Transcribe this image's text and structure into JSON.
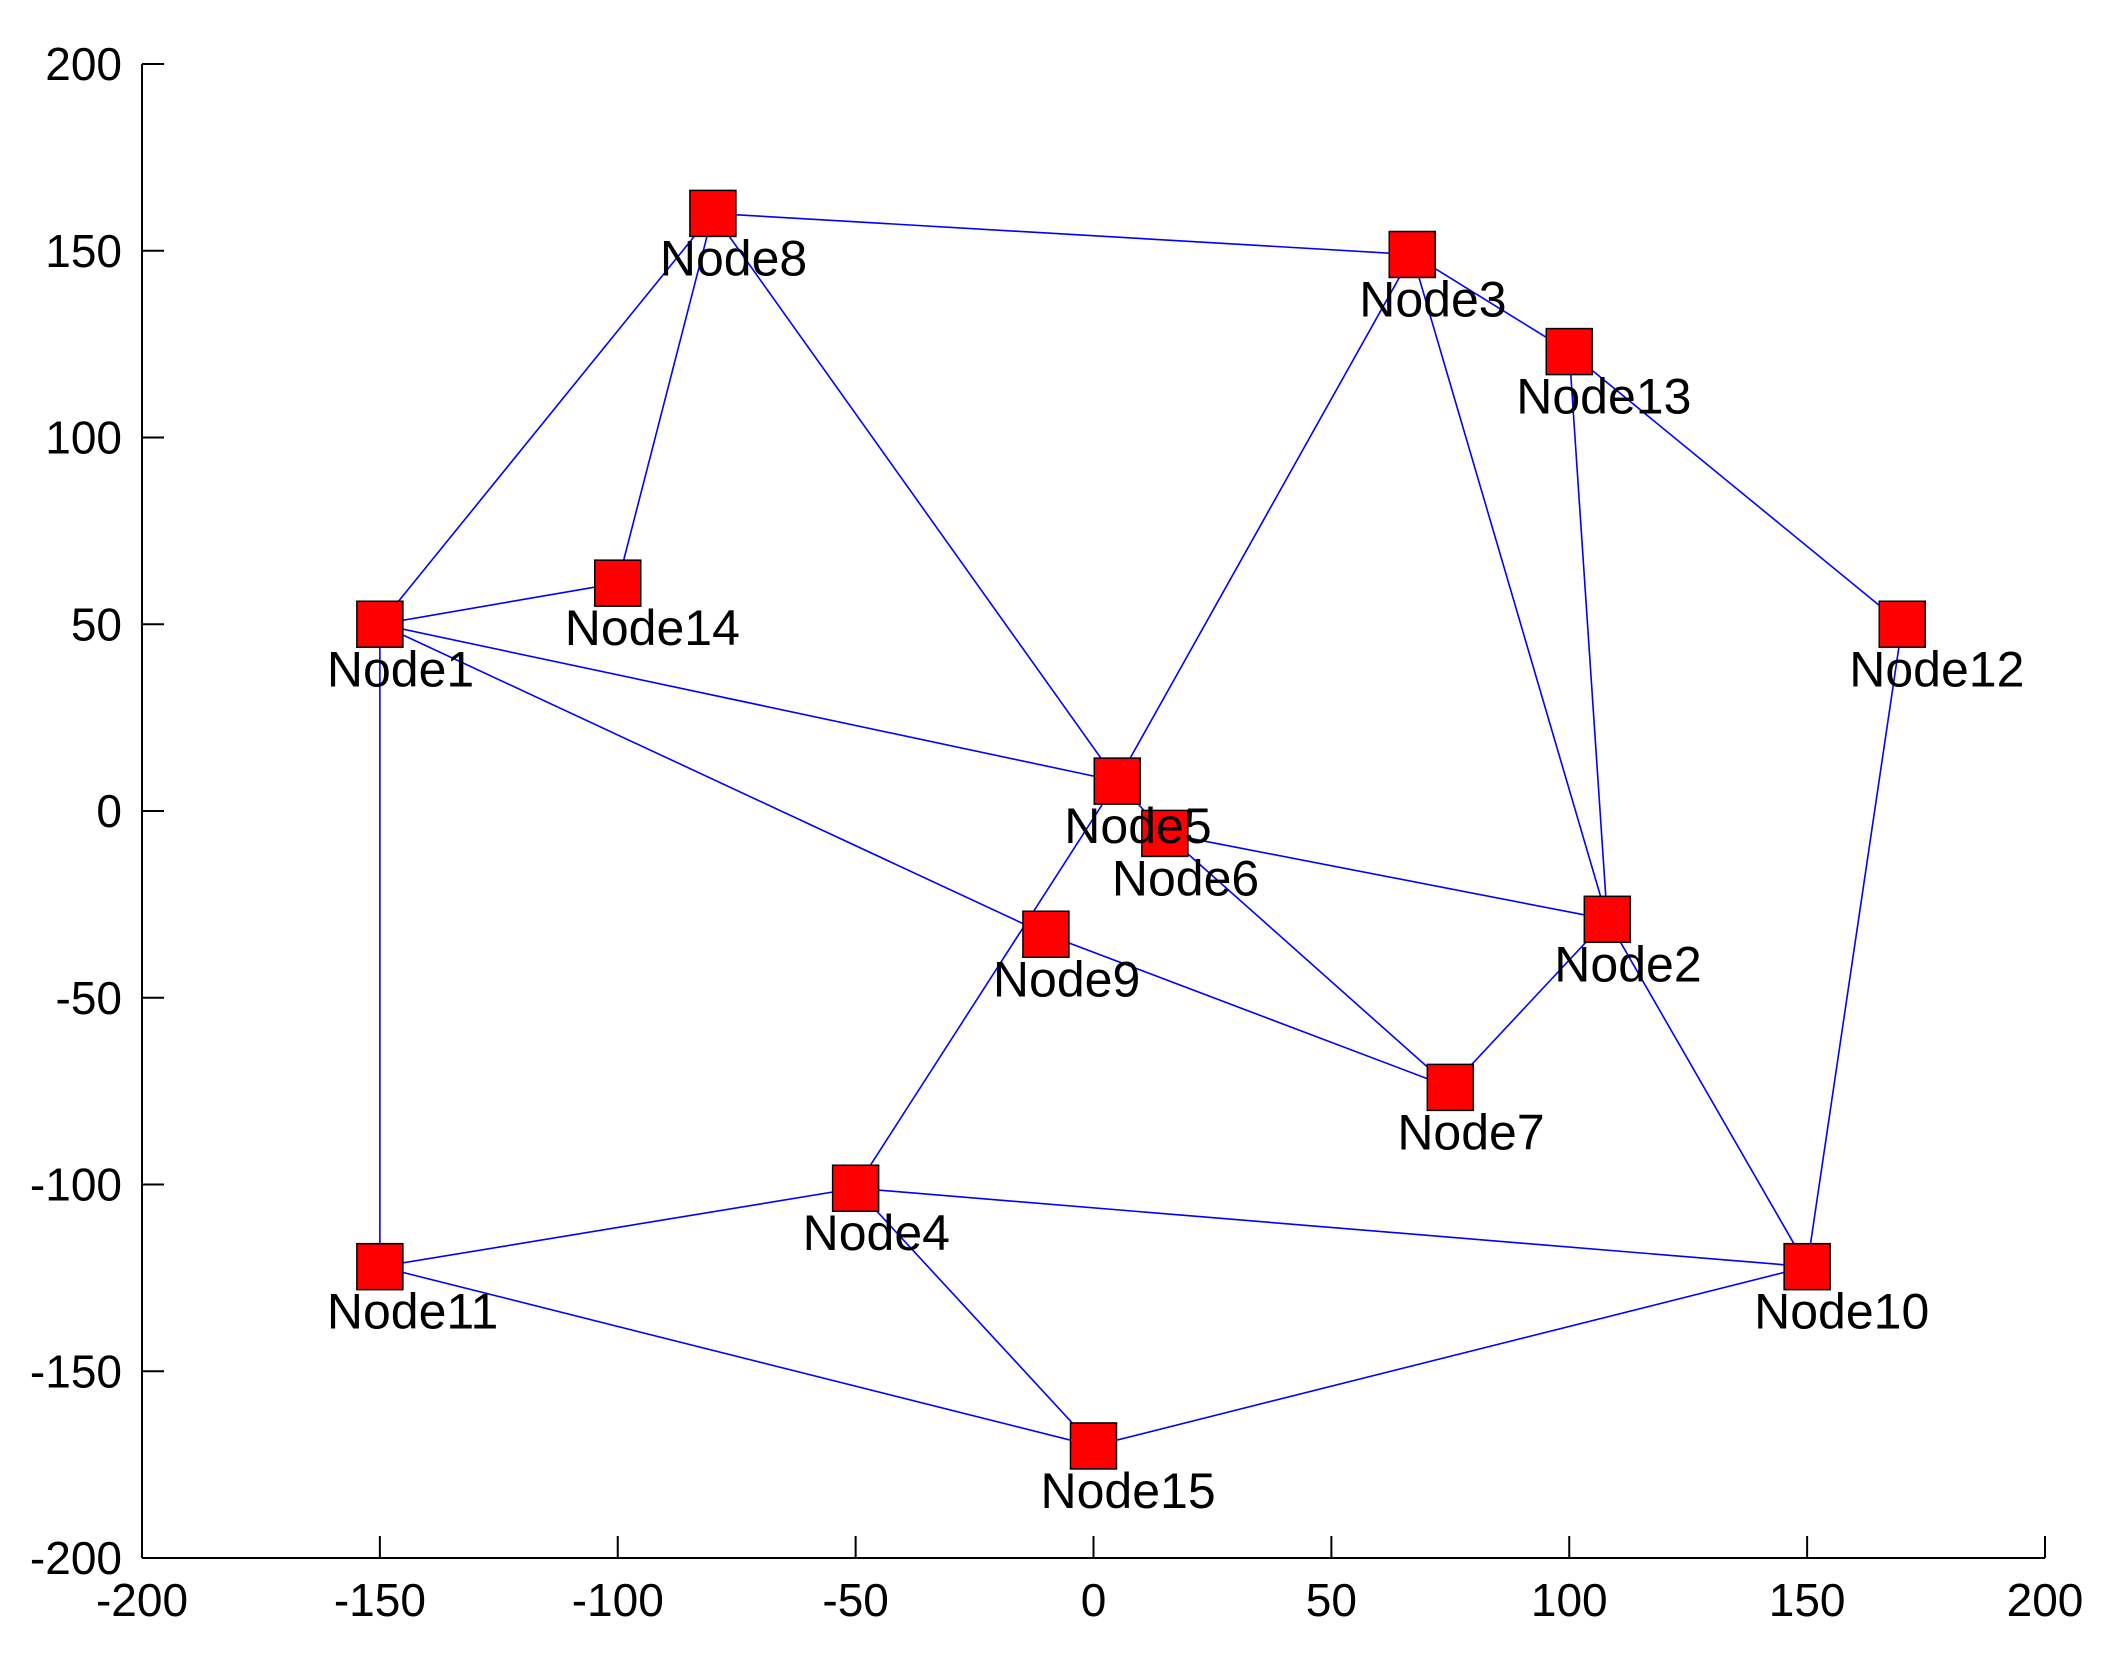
{
  "chart_data": {
    "type": "scatter",
    "title": "",
    "xlabel": "",
    "ylabel": "",
    "xlim": [
      -200,
      200
    ],
    "ylim": [
      -200,
      200
    ],
    "xticks": [
      -200,
      -150,
      -100,
      -50,
      0,
      50,
      100,
      150,
      200
    ],
    "yticks": [
      -200,
      -150,
      -100,
      -50,
      0,
      50,
      100,
      150,
      200
    ],
    "grid": false,
    "marker": "square",
    "colors": {
      "marker": "#ff0000",
      "edge": "#0000ff"
    },
    "nodes": [
      {
        "name": "Node1",
        "x": -150,
        "y": 50
      },
      {
        "name": "Node2",
        "x": 108,
        "y": -29
      },
      {
        "name": "Node3",
        "x": 67,
        "y": 149
      },
      {
        "name": "Node4",
        "x": -50,
        "y": -101
      },
      {
        "name": "Node5",
        "x": 5,
        "y": 8
      },
      {
        "name": "Node6",
        "x": 15,
        "y": -6
      },
      {
        "name": "Node7",
        "x": 75,
        "y": -74
      },
      {
        "name": "Node8",
        "x": -80,
        "y": 160
      },
      {
        "name": "Node9",
        "x": -10,
        "y": -33
      },
      {
        "name": "Node10",
        "x": 150,
        "y": -122
      },
      {
        "name": "Node11",
        "x": -150,
        "y": -122
      },
      {
        "name": "Node12",
        "x": 170,
        "y": 50
      },
      {
        "name": "Node13",
        "x": 100,
        "y": 123
      },
      {
        "name": "Node14",
        "x": -100,
        "y": 61
      },
      {
        "name": "Node15",
        "x": 0,
        "y": -170
      }
    ],
    "edges": [
      [
        "Node8",
        "Node3"
      ],
      [
        "Node8",
        "Node1"
      ],
      [
        "Node8",
        "Node14"
      ],
      [
        "Node8",
        "Node5"
      ],
      [
        "Node1",
        "Node14"
      ],
      [
        "Node1",
        "Node5"
      ],
      [
        "Node1",
        "Node9"
      ],
      [
        "Node1",
        "Node11"
      ],
      [
        "Node3",
        "Node13"
      ],
      [
        "Node3",
        "Node5"
      ],
      [
        "Node3",
        "Node2"
      ],
      [
        "Node13",
        "Node12"
      ],
      [
        "Node13",
        "Node2"
      ],
      [
        "Node12",
        "Node10"
      ],
      [
        "Node5",
        "Node6"
      ],
      [
        "Node5",
        "Node4"
      ],
      [
        "Node6",
        "Node2"
      ],
      [
        "Node6",
        "Node7"
      ],
      [
        "Node9",
        "Node7"
      ],
      [
        "Node7",
        "Node2"
      ],
      [
        "Node2",
        "Node10"
      ],
      [
        "Node4",
        "Node11"
      ],
      [
        "Node4",
        "Node10"
      ],
      [
        "Node4",
        "Node15"
      ],
      [
        "Node11",
        "Node15"
      ],
      [
        "Node15",
        "Node10"
      ]
    ]
  }
}
